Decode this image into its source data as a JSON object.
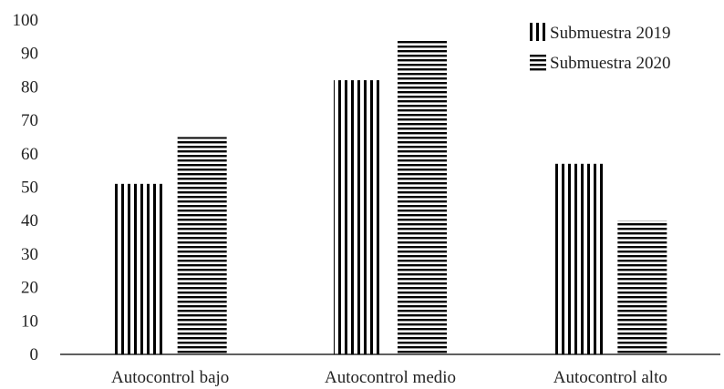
{
  "chart_data": {
    "type": "bar",
    "title": "",
    "xlabel": "",
    "ylabel": "",
    "categories": [
      "Autocontrol bajo",
      "Autocontrol medio",
      "Autocontrol alto"
    ],
    "series": [
      {
        "name": "Submuestra 2019",
        "values": [
          51,
          82,
          57
        ],
        "pattern": "vertical-stripes"
      },
      {
        "name": "Submuestra 2020",
        "values": [
          65,
          94,
          40
        ],
        "pattern": "horizontal-stripes"
      }
    ],
    "ylim": [
      0,
      100
    ],
    "yticks": [
      "0",
      "10",
      "20",
      "30",
      "40",
      "50",
      "60",
      "70",
      "80",
      "90",
      "100"
    ],
    "grid": false,
    "legend_position": "top-right",
    "colors": {
      "bar_stroke": "#000000",
      "axis": "#000000"
    }
  }
}
